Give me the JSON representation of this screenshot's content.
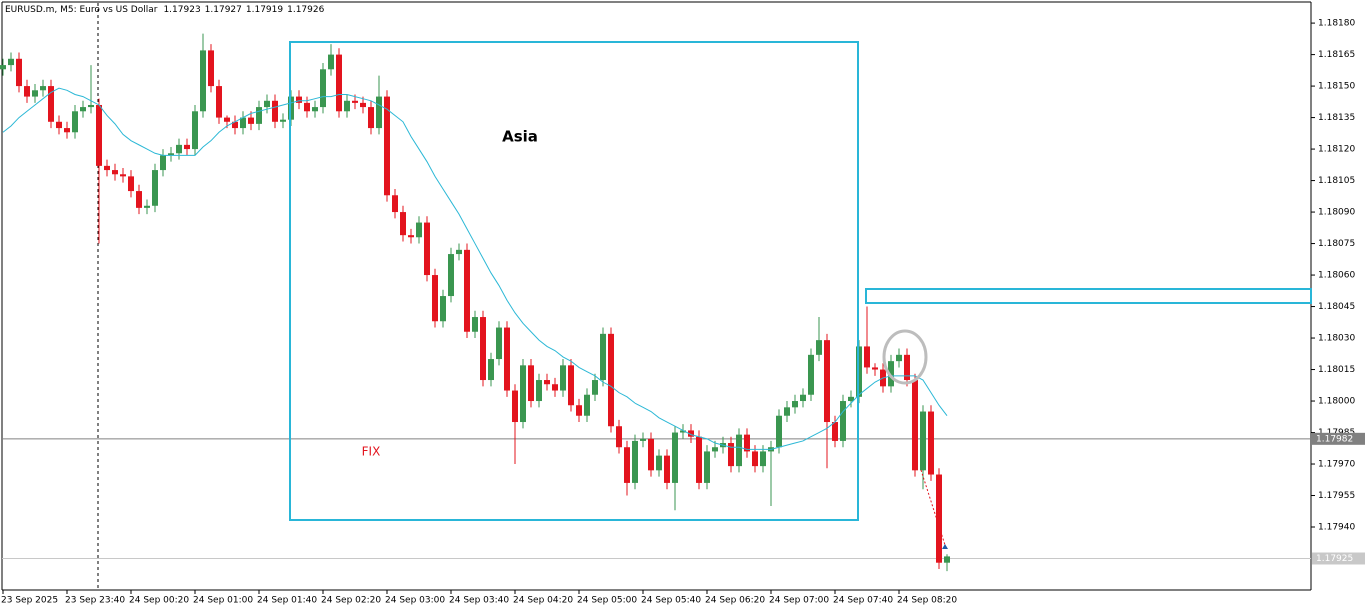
{
  "chart_data": {
    "type": "candlestick",
    "title": "EURUSD.m, M5:  Euro vs US Dollar",
    "annotations": [
      "Asia",
      "FIX"
    ],
    "categories": [
      "23 Sep 2025",
      null,
      null,
      null,
      null,
      null,
      null,
      null,
      "23 Sep 23:40",
      null,
      null,
      null,
      null,
      null,
      null,
      null,
      "24 Sep 00:20",
      null,
      null,
      null,
      null,
      null,
      null,
      null,
      "24 Sep 01:00",
      null,
      null,
      null,
      null,
      null,
      null,
      null,
      "24 Sep 01:40",
      null,
      null,
      null,
      null,
      null,
      null,
      null,
      "24 Sep 02:20",
      null,
      null,
      null,
      null,
      null,
      null,
      null,
      "24 Sep 03:00",
      null,
      null,
      null,
      null,
      null,
      null,
      null,
      "24 Sep 03:40",
      null,
      null,
      null,
      null,
      null,
      null,
      null,
      "24 Sep 04:20",
      null,
      null,
      null,
      null,
      null,
      null,
      null,
      "24 Sep 05:00",
      null,
      null,
      null,
      null,
      null,
      null,
      null,
      "24 Sep 05:40",
      null,
      null,
      null,
      null,
      null,
      null,
      null,
      "24 Sep 06:20",
      null,
      null,
      null,
      null,
      null,
      null,
      null,
      "24 Sep 07:00",
      null,
      null,
      null,
      null,
      null,
      null,
      null,
      "24 Sep 07:40",
      null,
      null,
      null,
      null,
      null,
      null,
      null,
      "24 Sep 08:20",
      null,
      null,
      null,
      null,
      null,
      null
    ],
    "series": {
      "up_color": "#3a9650",
      "down_color": "#e3141e",
      "open": [
        1.18158,
        1.1816,
        1.18163,
        1.1815,
        1.18145,
        1.18148,
        1.1815,
        1.18133,
        1.1813,
        1.18128,
        1.18138,
        1.1814,
        1.18141,
        1.18112,
        1.1811,
        1.18108,
        1.18107,
        1.181,
        1.18092,
        1.18093,
        1.1811,
        1.18117,
        1.18118,
        1.18122,
        1.1812,
        1.18138,
        1.18167,
        1.1815,
        1.18135,
        1.18133,
        1.1813,
        1.18135,
        1.18132,
        1.1814,
        1.18143,
        1.18133,
        1.18134,
        1.18145,
        1.18142,
        1.18138,
        1.1814,
        1.18158,
        1.18165,
        1.18138,
        1.18143,
        1.18142,
        1.1814,
        1.1813,
        1.18145,
        1.18098,
        1.1809,
        1.18079,
        1.18078,
        1.18085,
        1.1806,
        1.18038,
        1.1805,
        1.1807,
        1.18072,
        1.18033,
        1.1804,
        1.1801,
        1.1802,
        1.18035,
        1.18005,
        1.1799,
        1.18017,
        1.18,
        1.1801,
        1.18008,
        1.18005,
        1.18017,
        1.17998,
        1.17993,
        1.18003,
        1.1801,
        1.18032,
        1.17988,
        1.17978,
        1.17961,
        1.17981,
        1.17982,
        1.17967,
        1.17974,
        1.17961,
        1.17985,
        1.17986,
        1.17983,
        1.17961,
        1.17976,
        1.17978,
        1.1798,
        1.17969,
        1.17984,
        1.17976,
        1.17969,
        1.17976,
        1.17978,
        1.17993,
        1.17997,
        1.18,
        1.18003,
        1.18022,
        1.18029,
        1.1799,
        1.17981,
        1.18,
        1.18002,
        1.18026,
        1.18016,
        1.18015,
        1.18007,
        1.18019,
        1.18022,
        1.1801,
        1.17967,
        1.17995,
        1.17965,
        1.17923
      ],
      "high": [
        1.18163,
        1.18166,
        1.18166,
        1.18153,
        1.18151,
        1.18153,
        1.18153,
        1.18136,
        1.18133,
        1.18141,
        1.18143,
        1.1816,
        1.18144,
        1.18115,
        1.18113,
        1.18111,
        1.1811,
        1.18103,
        1.18096,
        1.18113,
        1.1812,
        1.18121,
        1.18125,
        1.18125,
        1.18141,
        1.18175,
        1.1817,
        1.18153,
        1.18136,
        1.18136,
        1.18138,
        1.18138,
        1.18143,
        1.18146,
        1.18146,
        1.18137,
        1.18148,
        1.18148,
        1.18145,
        1.18143,
        1.18161,
        1.1817,
        1.18168,
        1.18146,
        1.18146,
        1.18145,
        1.18143,
        1.18155,
        1.18148,
        1.18101,
        1.18093,
        1.18082,
        1.18088,
        1.18088,
        1.18063,
        1.18053,
        1.18073,
        1.18075,
        1.18075,
        1.18043,
        1.18043,
        1.18023,
        1.18038,
        1.18038,
        1.18008,
        1.1802,
        1.1802,
        1.18013,
        1.18013,
        1.18011,
        1.1802,
        1.1802,
        1.18001,
        1.18006,
        1.18013,
        1.18035,
        1.18035,
        1.17991,
        1.17981,
        1.17984,
        1.17985,
        1.17985,
        1.17977,
        1.17977,
        1.17988,
        1.17989,
        1.17989,
        1.17986,
        1.17979,
        1.17981,
        1.17983,
        1.17983,
        1.17987,
        1.17987,
        1.17979,
        1.17979,
        1.17981,
        1.17996,
        1.18,
        1.18003,
        1.18006,
        1.18025,
        1.1804,
        1.18032,
        1.17993,
        1.18003,
        1.18005,
        1.18029,
        1.18045,
        1.18018,
        1.18018,
        1.18022,
        1.18025,
        1.18025,
        1.18013,
        1.17998,
        1.17998,
        1.17968,
        1.17927
      ],
      "low": [
        1.18155,
        1.18157,
        1.18147,
        1.18142,
        1.18142,
        1.18145,
        1.1813,
        1.18127,
        1.18125,
        1.18125,
        1.18135,
        1.18137,
        1.18075,
        1.18107,
        1.18105,
        1.18104,
        1.18097,
        1.18089,
        1.18089,
        1.1809,
        1.18107,
        1.18114,
        1.18115,
        1.18117,
        1.18117,
        1.18135,
        1.18147,
        1.18132,
        1.1813,
        1.18127,
        1.18127,
        1.18129,
        1.18129,
        1.18137,
        1.1813,
        1.1813,
        1.18131,
        1.18139,
        1.18135,
        1.18135,
        1.18137,
        1.18155,
        1.18135,
        1.18135,
        1.18139,
        1.18137,
        1.18127,
        1.18127,
        1.18095,
        1.18087,
        1.18076,
        1.18075,
        1.18075,
        1.18057,
        1.18035,
        1.18035,
        1.18047,
        1.18067,
        1.1803,
        1.1803,
        1.18007,
        1.18007,
        1.18017,
        1.18002,
        1.1797,
        1.17987,
        1.17997,
        1.17997,
        1.18005,
        1.18002,
        1.18002,
        1.17995,
        1.1799,
        1.1799,
        1.18,
        1.18007,
        1.17985,
        1.17975,
        1.17955,
        1.17958,
        1.17978,
        1.17964,
        1.17964,
        1.17958,
        1.17948,
        1.17982,
        1.1798,
        1.17958,
        1.17958,
        1.17973,
        1.17975,
        1.17966,
        1.17966,
        1.17973,
        1.17966,
        1.17966,
        1.1795,
        1.17975,
        1.1799,
        1.17994,
        1.17997,
        1.18,
        1.18019,
        1.17968,
        1.17978,
        1.17978,
        1.17997,
        1.17999,
        1.18013,
        1.18012,
        1.18004,
        1.18004,
        1.18016,
        1.18007,
        1.17964,
        1.17958,
        1.17962,
        1.1792,
        1.17919
      ],
      "close": [
        1.1816,
        1.18163,
        1.1815,
        1.18145,
        1.18148,
        1.1815,
        1.18133,
        1.1813,
        1.18128,
        1.18138,
        1.1814,
        1.18141,
        1.18112,
        1.1811,
        1.18108,
        1.18107,
        1.181,
        1.18092,
        1.18093,
        1.1811,
        1.18117,
        1.18118,
        1.18122,
        1.1812,
        1.18138,
        1.18167,
        1.1815,
        1.18135,
        1.18133,
        1.1813,
        1.18135,
        1.18132,
        1.1814,
        1.18143,
        1.18133,
        1.18134,
        1.18145,
        1.18142,
        1.18138,
        1.1814,
        1.18158,
        1.18165,
        1.18138,
        1.18143,
        1.18142,
        1.1814,
        1.1813,
        1.18145,
        1.18098,
        1.1809,
        1.18079,
        1.18078,
        1.18085,
        1.1806,
        1.18038,
        1.1805,
        1.1807,
        1.18072,
        1.18033,
        1.1804,
        1.1801,
        1.1802,
        1.18035,
        1.18005,
        1.1799,
        1.18017,
        1.18,
        1.1801,
        1.18008,
        1.18005,
        1.18017,
        1.17998,
        1.17993,
        1.18003,
        1.1801,
        1.18032,
        1.17988,
        1.17978,
        1.17961,
        1.17981,
        1.17982,
        1.17967,
        1.17974,
        1.17961,
        1.17985,
        1.17986,
        1.17983,
        1.17961,
        1.17976,
        1.17978,
        1.1798,
        1.17969,
        1.17984,
        1.17976,
        1.17969,
        1.17976,
        1.17978,
        1.17993,
        1.17997,
        1.18,
        1.18003,
        1.18022,
        1.18029,
        1.1799,
        1.17981,
        1.18,
        1.18002,
        1.18026,
        1.18016,
        1.18015,
        1.18007,
        1.18019,
        1.18022,
        1.1801,
        1.17967,
        1.17995,
        1.17965,
        1.17923,
        1.17926
      ]
    },
    "ma": {
      "color": "#2cb8d6",
      "values": [
        1.18128,
        1.18131,
        1.18135,
        1.18138,
        1.18141,
        1.18144,
        1.18147,
        1.18149,
        1.18148,
        1.18146,
        1.18145,
        1.18143,
        1.18141,
        1.18136,
        1.18132,
        1.18127,
        1.18124,
        1.18122,
        1.1812,
        1.18118,
        1.18117,
        1.18117,
        1.18117,
        1.18117,
        1.18117,
        1.18121,
        1.18124,
        1.18128,
        1.18131,
        1.18133,
        1.18135,
        1.18137,
        1.18138,
        1.18139,
        1.1814,
        1.18141,
        1.18142,
        1.18143,
        1.18143,
        1.18144,
        1.18145,
        1.18145,
        1.18146,
        1.18146,
        1.18145,
        1.18144,
        1.18143,
        1.18141,
        1.18139,
        1.18136,
        1.18133,
        1.18126,
        1.1812,
        1.18114,
        1.18107,
        1.18101,
        1.18095,
        1.18089,
        1.18082,
        1.18075,
        1.18068,
        1.18061,
        1.18055,
        1.18048,
        1.18042,
        1.18037,
        1.18033,
        1.18029,
        1.18026,
        1.18024,
        1.18021,
        1.18019,
        1.18016,
        1.18014,
        1.18012,
        1.18009,
        1.18007,
        1.18004,
        1.18002,
        1.17999,
        1.17997,
        1.17995,
        1.17992,
        1.1799,
        1.17988,
        1.17986,
        1.17984,
        1.17983,
        1.17982,
        1.1798,
        1.17979,
        1.17978,
        1.17978,
        1.17977,
        1.17977,
        1.17977,
        1.17977,
        1.17978,
        1.17979,
        1.1798,
        1.17981,
        1.17983,
        1.17985,
        1.17987,
        1.1799,
        1.17995,
        1.17999,
        1.18003,
        1.18006,
        1.18009,
        1.18011,
        1.18012,
        1.18012,
        1.18012,
        1.18012,
        1.1801,
        1.18004,
        1.17998,
        1.17993
      ]
    },
    "levels": [
      1.17982,
      1.17925
    ],
    "ylim": [
      1.1791,
      1.18191
    ],
    "yticks": [
      {
        "value": 1.1818,
        "label": "1.18180"
      },
      1.18165,
      {
        "value": 1.1815,
        "label": "1.18150"
      },
      1.18135,
      {
        "value": 1.1812,
        "label": "1.18120"
      },
      1.18105,
      {
        "value": 1.1809,
        "label": "1.18090"
      },
      1.18075,
      {
        "value": 1.1806,
        "label": "1.18060"
      },
      1.18045,
      {
        "value": 1.1803,
        "label": "1.18030"
      },
      1.18015,
      {
        "value": 1.18,
        "label": "1.18000"
      },
      1.17985,
      {
        "value": 1.1797,
        "label": "1.17970"
      },
      1.17955,
      {
        "value": 1.1794,
        "label": "1.17940"
      }
    ]
  }
}
